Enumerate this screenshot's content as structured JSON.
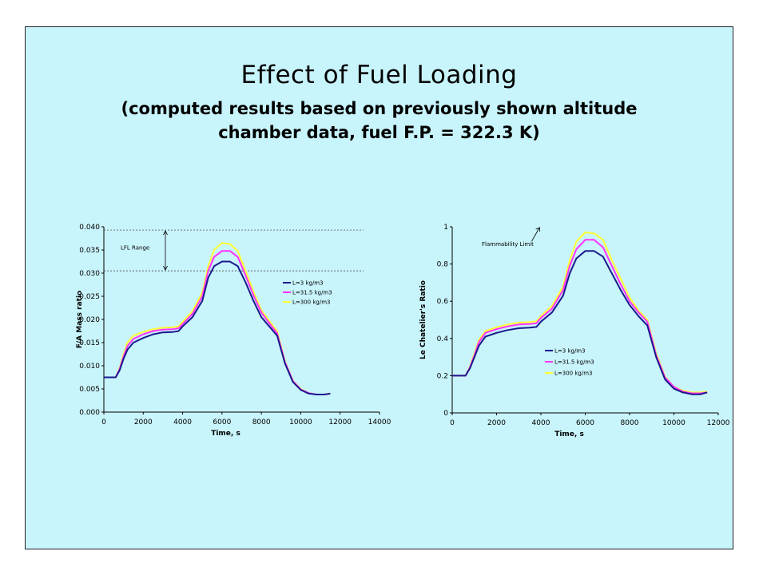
{
  "slide": {
    "title": "Effect of Fuel Loading",
    "subtitle_line1": "(computed results based on previously shown altitude",
    "subtitle_line2": "chamber data, fuel F.P. = 322.3 K)"
  },
  "colors": {
    "background": "#c8f4fb",
    "series": [
      "#1a1a8c",
      "#ff33ff",
      "#ffff33"
    ]
  },
  "chart_data": [
    {
      "type": "line",
      "xlabel": "Time, s",
      "ylabel": "F/A Mass ratio",
      "xlim": [
        0,
        14000
      ],
      "ylim": [
        0,
        0.04
      ],
      "xticks": [
        "0",
        "2000",
        "4000",
        "6000",
        "8000",
        "10000",
        "12000",
        "14000"
      ],
      "yticks": [
        "0.000",
        "0.005",
        "0.010",
        "0.015",
        "0.020",
        "0.025",
        "0.030",
        "0.035",
        "0.040"
      ],
      "grid": false,
      "legend_position": "right",
      "annotations": [
        {
          "text": "LFL Range",
          "y_range": [
            0.0305,
            0.0393
          ]
        }
      ],
      "series": [
        {
          "name": "L=3 kg/m3",
          "color": "#1a1a8c",
          "x": [
            0,
            600,
            800,
            1000,
            1200,
            1500,
            2000,
            2500,
            3000,
            3500,
            3800,
            4000,
            4500,
            5000,
            5300,
            5600,
            6000,
            6400,
            6800,
            7200,
            7600,
            8000,
            8400,
            8800,
            9200,
            9600,
            10000,
            10400,
            10800,
            11200,
            11500
          ],
          "y": [
            0.0075,
            0.0075,
            0.009,
            0.0115,
            0.0135,
            0.015,
            0.016,
            0.0168,
            0.0172,
            0.0173,
            0.0175,
            0.0185,
            0.0205,
            0.024,
            0.029,
            0.0315,
            0.0325,
            0.0325,
            0.0315,
            0.028,
            0.024,
            0.0205,
            0.0185,
            0.0165,
            0.0105,
            0.0065,
            0.0048,
            0.004,
            0.0038,
            0.0038,
            0.004
          ]
        },
        {
          "name": "L=31.5 kg/m3",
          "color": "#ff33ff",
          "x": [
            0,
            600,
            800,
            1000,
            1200,
            1500,
            2000,
            2500,
            3000,
            3500,
            3800,
            4000,
            4500,
            5000,
            5300,
            5600,
            6000,
            6400,
            6800,
            7200,
            7600,
            8000,
            8400,
            8800,
            9200,
            9600,
            10000,
            10400,
            10800,
            11200,
            11500
          ],
          "y": [
            0.0075,
            0.0075,
            0.0093,
            0.012,
            0.0143,
            0.0158,
            0.0168,
            0.0175,
            0.0178,
            0.0179,
            0.0181,
            0.019,
            0.0212,
            0.025,
            0.0305,
            0.0335,
            0.0348,
            0.0348,
            0.0335,
            0.0295,
            0.0252,
            0.0215,
            0.0192,
            0.017,
            0.0108,
            0.0067,
            0.0049,
            0.0041,
            0.0038,
            0.0038,
            0.004
          ]
        },
        {
          "name": "L=300 kg/m3",
          "color": "#ffff33",
          "x": [
            0,
            600,
            800,
            1000,
            1200,
            1500,
            2000,
            2500,
            3000,
            3500,
            3800,
            4000,
            4500,
            5000,
            5300,
            5600,
            6000,
            6400,
            6800,
            7200,
            7600,
            8000,
            8400,
            8800,
            9200,
            9600,
            10000,
            10400,
            10800,
            11200,
            11500
          ],
          "y": [
            0.0075,
            0.0075,
            0.0095,
            0.0125,
            0.015,
            0.0165,
            0.0173,
            0.0179,
            0.0182,
            0.0183,
            0.0185,
            0.0195,
            0.0218,
            0.0258,
            0.0315,
            0.035,
            0.0365,
            0.0363,
            0.0348,
            0.0305,
            0.026,
            0.022,
            0.0197,
            0.0175,
            0.011,
            0.0068,
            0.005,
            0.0041,
            0.0038,
            0.0038,
            0.004
          ]
        }
      ]
    },
    {
      "type": "line",
      "xlabel": "Time, s",
      "ylabel": "Le Chatelier's Ratio",
      "xlim": [
        0,
        12000
      ],
      "ylim": [
        0,
        1
      ],
      "xticks": [
        "0",
        "2000",
        "4000",
        "6000",
        "8000",
        "10000",
        "12000"
      ],
      "yticks": [
        "0",
        "0.2",
        "0.4",
        "0.6",
        "0.8",
        "1"
      ],
      "grid": false,
      "legend_position": "center-right",
      "annotations": [
        {
          "text": "Flammability Limit",
          "y": 1.0
        }
      ],
      "series": [
        {
          "name": "L=3 kg/m3",
          "color": "#1a1a8c",
          "x": [
            0,
            600,
            800,
            1000,
            1200,
            1500,
            2000,
            2500,
            3000,
            3500,
            3800,
            4000,
            4500,
            5000,
            5300,
            5600,
            6000,
            6400,
            6800,
            7200,
            7600,
            8000,
            8400,
            8800,
            9200,
            9600,
            10000,
            10400,
            10800,
            11200,
            11500
          ],
          "y": [
            0.2,
            0.2,
            0.24,
            0.3,
            0.36,
            0.41,
            0.43,
            0.445,
            0.455,
            0.458,
            0.462,
            0.49,
            0.54,
            0.63,
            0.75,
            0.83,
            0.87,
            0.87,
            0.84,
            0.75,
            0.66,
            0.58,
            0.52,
            0.47,
            0.3,
            0.18,
            0.13,
            0.11,
            0.1,
            0.1,
            0.11
          ]
        },
        {
          "name": "L=31.5 kg/m3",
          "color": "#ff33ff",
          "x": [
            0,
            600,
            800,
            1000,
            1200,
            1500,
            2000,
            2500,
            3000,
            3500,
            3800,
            4000,
            4500,
            5000,
            5300,
            5600,
            6000,
            6400,
            6800,
            7200,
            7600,
            8000,
            8400,
            8800,
            9200,
            9600,
            10000,
            10400,
            10800,
            11200,
            11500
          ],
          "y": [
            0.2,
            0.2,
            0.245,
            0.31,
            0.38,
            0.43,
            0.45,
            0.465,
            0.475,
            0.478,
            0.482,
            0.51,
            0.56,
            0.66,
            0.79,
            0.88,
            0.93,
            0.93,
            0.89,
            0.79,
            0.69,
            0.6,
            0.54,
            0.49,
            0.31,
            0.19,
            0.14,
            0.115,
            0.105,
            0.105,
            0.11
          ]
        },
        {
          "name": "L=300 kg/m3",
          "color": "#ffff33",
          "x": [
            0,
            600,
            800,
            1000,
            1200,
            1500,
            2000,
            2500,
            3000,
            3500,
            3800,
            4000,
            4500,
            5000,
            5300,
            5600,
            6000,
            6400,
            6800,
            7200,
            7600,
            8000,
            8400,
            8800,
            9200,
            9600,
            10000,
            10400,
            10800,
            11200,
            11500
          ],
          "y": [
            0.2,
            0.2,
            0.25,
            0.32,
            0.39,
            0.44,
            0.46,
            0.475,
            0.485,
            0.488,
            0.492,
            0.52,
            0.575,
            0.68,
            0.82,
            0.92,
            0.97,
            0.965,
            0.93,
            0.82,
            0.72,
            0.62,
            0.55,
            0.5,
            0.32,
            0.195,
            0.14,
            0.12,
            0.11,
            0.11,
            0.115
          ]
        }
      ]
    }
  ]
}
